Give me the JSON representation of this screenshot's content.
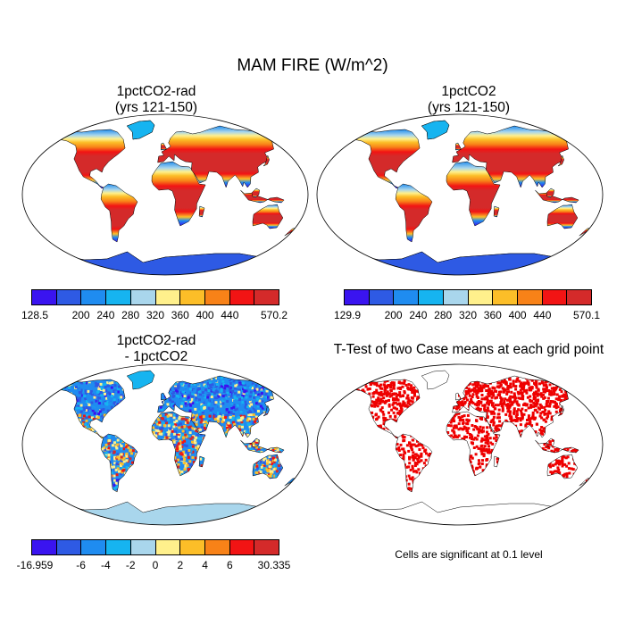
{
  "figure": {
    "title": "MAM FIRE (W/m^2)",
    "note": "Cells are significant at 0.1 level"
  },
  "panels": [
    {
      "title_line1": "1pctCO2-rad",
      "title_line2": "(yrs 121-150)",
      "kind": "absolute"
    },
    {
      "title_line1": "1pctCO2",
      "title_line2": "(yrs 121-150)",
      "kind": "absolute"
    },
    {
      "title_line1": "1pctCO2-rad",
      "title_line2": "- 1pctCO2",
      "kind": "difference"
    },
    {
      "title_line1": "T-Test of two Case means at each grid point",
      "kind": "significance"
    }
  ],
  "colorbars": [
    {
      "colors": [
        "#3a14f0",
        "#2e5ae4",
        "#1f8cf0",
        "#16b4f0",
        "#a9d6ec",
        "#fff08c",
        "#fcbe28",
        "#f88218",
        "#f21414",
        "#d42a2a"
      ],
      "labels": [
        "128.5",
        "200",
        "240",
        "280",
        "320",
        "360",
        "400",
        "440",
        "570.2"
      ]
    },
    {
      "colors": [
        "#3a14f0",
        "#2e5ae4",
        "#1f8cf0",
        "#16b4f0",
        "#a9d6ec",
        "#fff08c",
        "#fcbe28",
        "#f88218",
        "#f21414",
        "#d42a2a"
      ],
      "labels": [
        "129.9",
        "200",
        "240",
        "280",
        "320",
        "360",
        "400",
        "440",
        "570.1"
      ]
    },
    {
      "colors": [
        "#3a14f0",
        "#2e5ae4",
        "#1f8cf0",
        "#16b4f0",
        "#a9d6ec",
        "#fff08c",
        "#fcbe28",
        "#f88218",
        "#f21414",
        "#d42a2a"
      ],
      "labels": [
        "-16.959",
        "-6",
        "-4",
        "-2",
        "0",
        "2",
        "4",
        "6",
        "30.335"
      ]
    }
  ],
  "significance_color": "#ee0000"
}
